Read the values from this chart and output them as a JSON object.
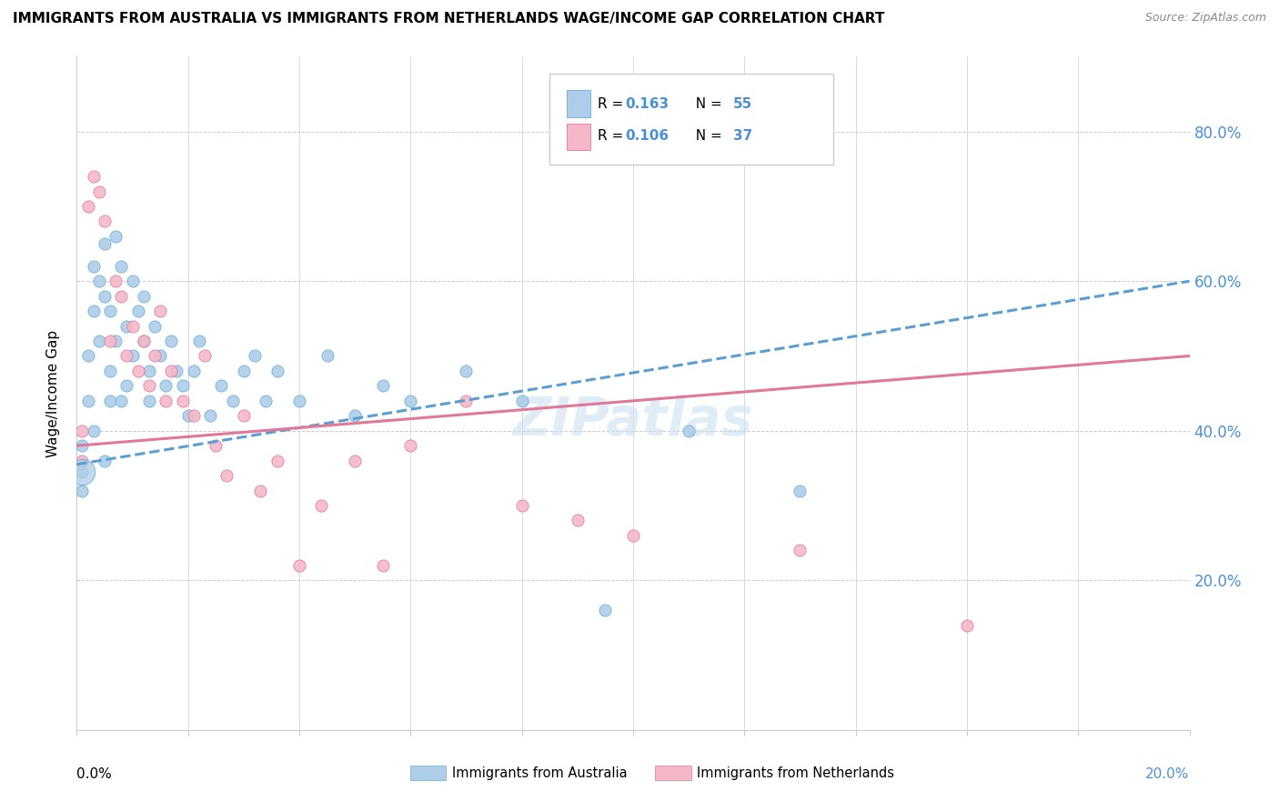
{
  "title": "IMMIGRANTS FROM AUSTRALIA VS IMMIGRANTS FROM NETHERLANDS WAGE/INCOME GAP CORRELATION CHART",
  "source": "Source: ZipAtlas.com",
  "ylabel": "Wage/Income Gap",
  "xlim": [
    0.0,
    0.2
  ],
  "ylim": [
    0.0,
    0.9
  ],
  "yticks": [
    0.0,
    0.2,
    0.4,
    0.6,
    0.8
  ],
  "ytick_labels": [
    "",
    "20.0%",
    "40.0%",
    "60.0%",
    "80.0%"
  ],
  "australia_color": "#aecde8",
  "australia_edge": "#6aaed6",
  "netherlands_color": "#f4b8c8",
  "netherlands_edge": "#e07898",
  "australia_line_color": "#5a9fd4",
  "netherlands_line_color": "#e07898",
  "R_australia": 0.163,
  "N_australia": 55,
  "R_netherlands": 0.106,
  "N_netherlands": 37,
  "watermark": "ZIPatlas",
  "aus_x": [
    0.001,
    0.001,
    0.001,
    0.002,
    0.002,
    0.003,
    0.003,
    0.003,
    0.004,
    0.004,
    0.005,
    0.005,
    0.005,
    0.006,
    0.006,
    0.006,
    0.007,
    0.007,
    0.008,
    0.008,
    0.009,
    0.009,
    0.01,
    0.01,
    0.011,
    0.012,
    0.012,
    0.013,
    0.013,
    0.014,
    0.015,
    0.016,
    0.017,
    0.018,
    0.019,
    0.02,
    0.021,
    0.022,
    0.024,
    0.026,
    0.028,
    0.03,
    0.032,
    0.034,
    0.036,
    0.04,
    0.045,
    0.05,
    0.055,
    0.06,
    0.07,
    0.08,
    0.095,
    0.11,
    0.13
  ],
  "aus_y": [
    0.345,
    0.38,
    0.32,
    0.5,
    0.44,
    0.62,
    0.56,
    0.4,
    0.6,
    0.52,
    0.65,
    0.58,
    0.36,
    0.56,
    0.48,
    0.44,
    0.66,
    0.52,
    0.62,
    0.44,
    0.54,
    0.46,
    0.6,
    0.5,
    0.56,
    0.52,
    0.58,
    0.48,
    0.44,
    0.54,
    0.5,
    0.46,
    0.52,
    0.48,
    0.46,
    0.42,
    0.48,
    0.52,
    0.42,
    0.46,
    0.44,
    0.48,
    0.5,
    0.44,
    0.48,
    0.44,
    0.5,
    0.42,
    0.46,
    0.44,
    0.48,
    0.44,
    0.16,
    0.4,
    0.32
  ],
  "neth_x": [
    0.001,
    0.001,
    0.002,
    0.003,
    0.004,
    0.005,
    0.006,
    0.007,
    0.008,
    0.009,
    0.01,
    0.011,
    0.012,
    0.013,
    0.014,
    0.015,
    0.016,
    0.017,
    0.019,
    0.021,
    0.023,
    0.025,
    0.027,
    0.03,
    0.033,
    0.036,
    0.04,
    0.044,
    0.05,
    0.055,
    0.06,
    0.07,
    0.08,
    0.09,
    0.1,
    0.13,
    0.16
  ],
  "neth_y": [
    0.36,
    0.4,
    0.7,
    0.74,
    0.72,
    0.68,
    0.52,
    0.6,
    0.58,
    0.5,
    0.54,
    0.48,
    0.52,
    0.46,
    0.5,
    0.56,
    0.44,
    0.48,
    0.44,
    0.42,
    0.5,
    0.38,
    0.34,
    0.42,
    0.32,
    0.36,
    0.22,
    0.3,
    0.36,
    0.22,
    0.38,
    0.44,
    0.3,
    0.28,
    0.26,
    0.24,
    0.14
  ],
  "aus_line_x0": 0.0,
  "aus_line_y0": 0.355,
  "aus_line_x1": 0.2,
  "aus_line_y1": 0.6,
  "neth_line_x0": 0.0,
  "neth_line_y0": 0.38,
  "neth_line_x1": 0.2,
  "neth_line_y1": 0.5
}
